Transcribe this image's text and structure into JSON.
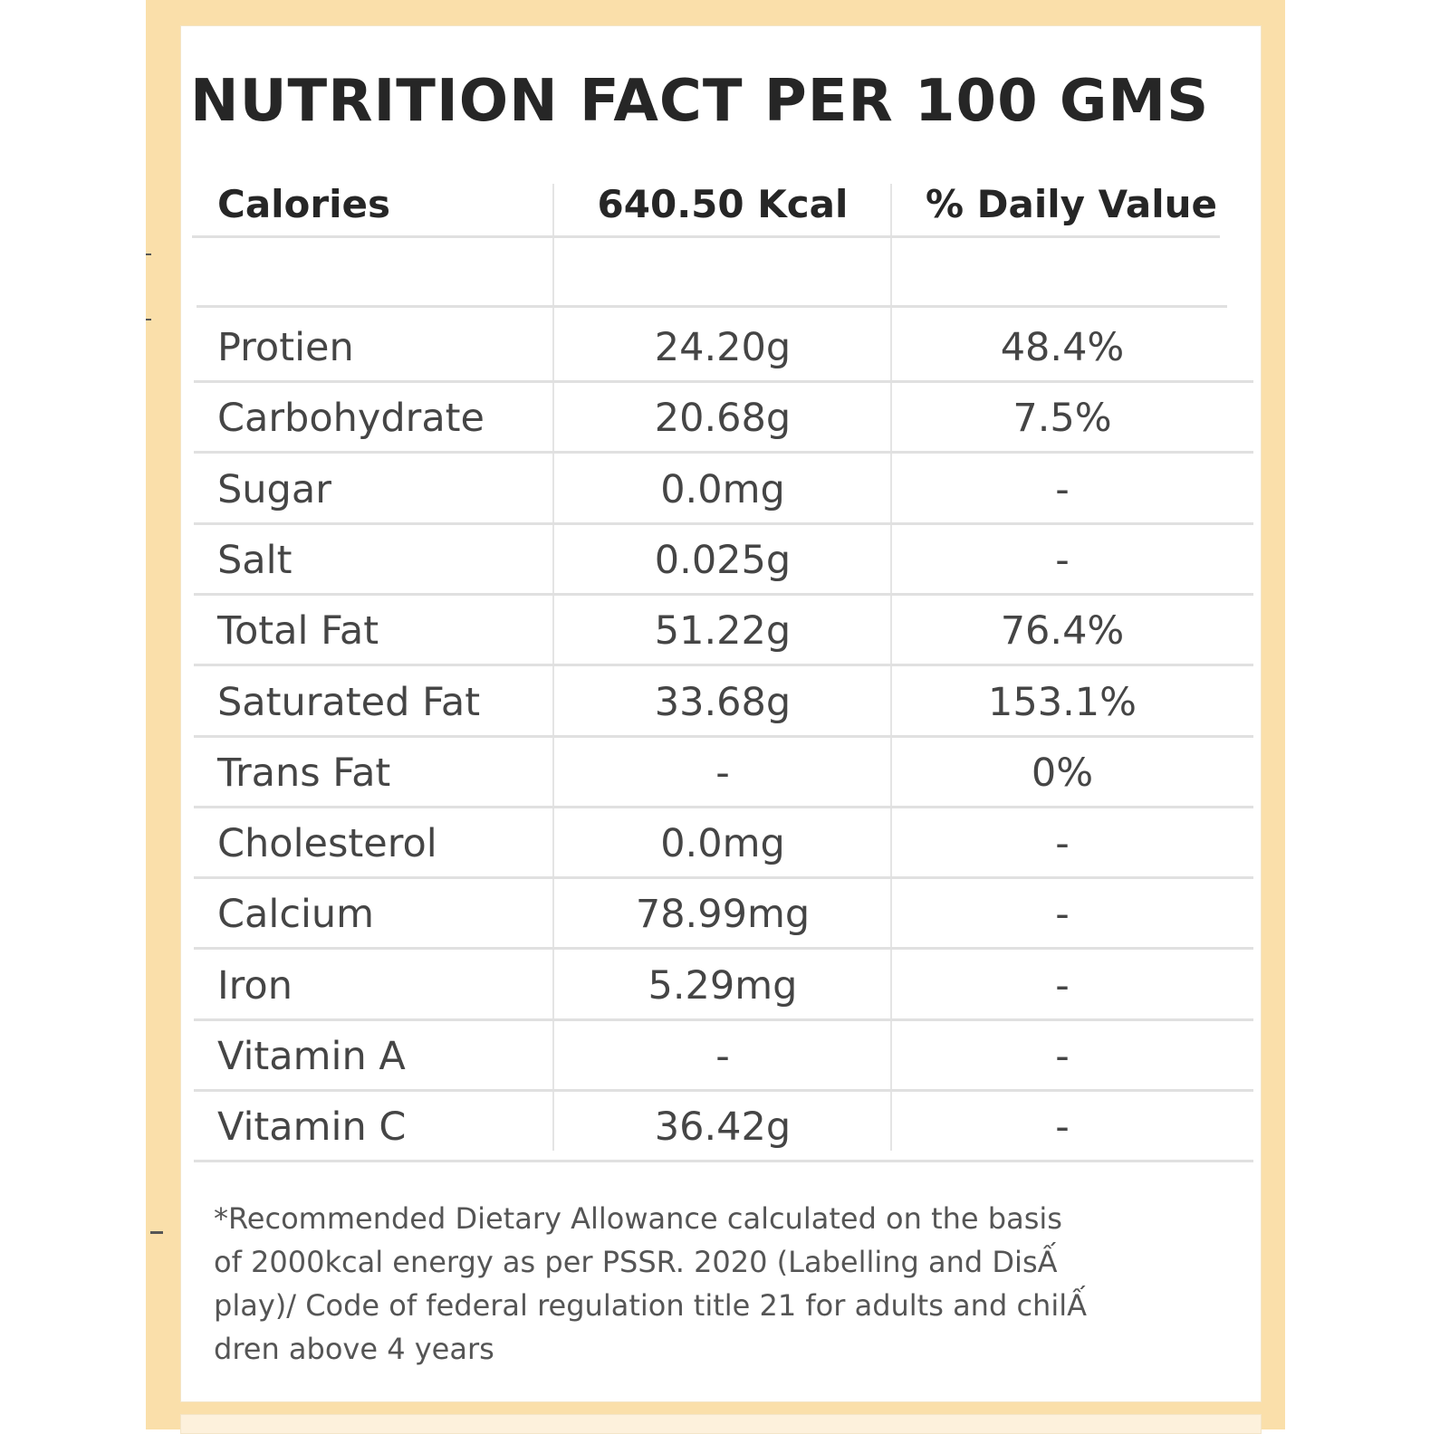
{
  "title": "NUTRITION FACT PER 100 GMS",
  "header": {
    "label": "Calories",
    "amount": "640.50 Kcal",
    "daily_value": "% Daily Value"
  },
  "rows": [
    {
      "nutrient": "Protien",
      "amount": "24.20g",
      "dv": "48.4%"
    },
    {
      "nutrient": "Carbohydrate",
      "amount": "20.68g",
      "dv": "7.5%"
    },
    {
      "nutrient": "Sugar",
      "amount": "0.0mg",
      "dv": "-"
    },
    {
      "nutrient": "Salt",
      "amount": "0.025g",
      "dv": "-"
    },
    {
      "nutrient": "Total Fat",
      "amount": "51.22g",
      "dv": "76.4%"
    },
    {
      "nutrient": "Saturated Fat",
      "amount": "33.68g",
      "dv": "153.1%"
    },
    {
      "nutrient": "Trans Fat",
      "amount": "-",
      "dv": "0%"
    },
    {
      "nutrient": "Cholesterol",
      "amount": "0.0mg",
      "dv": "-"
    },
    {
      "nutrient": "Calcium",
      "amount": "78.99mg",
      "dv": "-"
    },
    {
      "nutrient": "Iron",
      "amount": "5.29mg",
      "dv": "-"
    },
    {
      "nutrient": "Vitamin A",
      "amount": "-",
      "dv": "-"
    },
    {
      "nutrient": "Vitamin C",
      "amount": "36.42g",
      "dv": "-"
    }
  ],
  "footnote": [
    "*Recommended Dietary Allowance calculated on the basis",
    "of 2000kcal energy as per PSSR. 2020 (Labelling and DisẤ",
    "play)/ Code of federal regulation title 21 for adults and chilẤ",
    "dren above 4 years"
  ],
  "colors": {
    "frame": "#fadfaa",
    "card": "#ffffff",
    "title_text": "#262626",
    "body_text": "#454545",
    "rule": "#e0e0e0"
  }
}
